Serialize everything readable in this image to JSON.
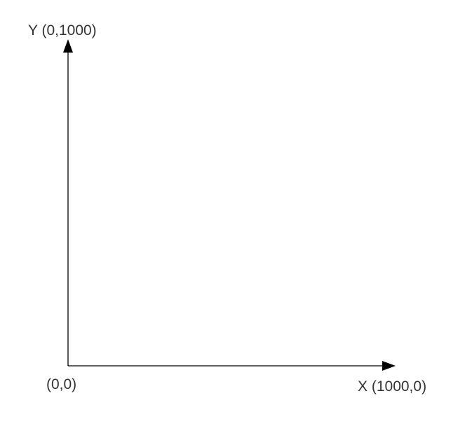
{
  "diagram": {
    "y_axis_label": "Y (0,1000)",
    "x_axis_label": "X (1000,0)",
    "origin_label": "(0,0)"
  },
  "colors": {
    "axis": "#000000",
    "text": "#333333"
  }
}
